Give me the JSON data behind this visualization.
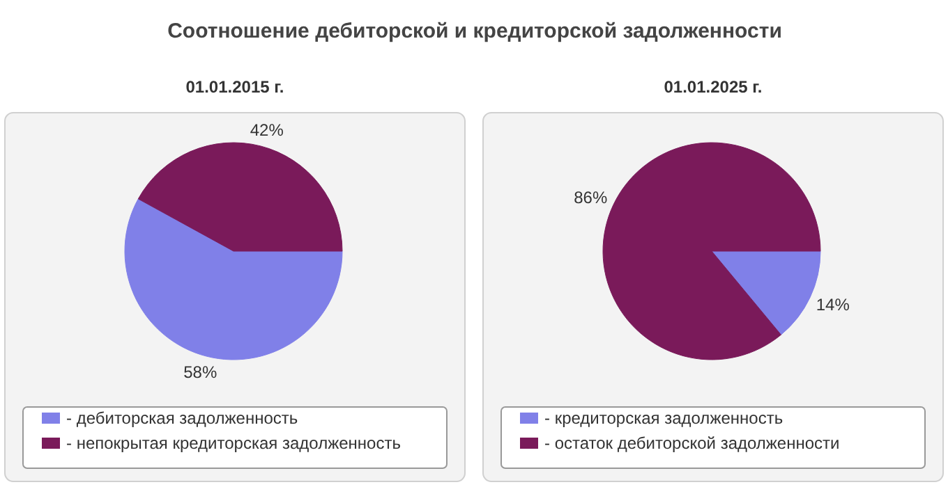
{
  "chart_data": [
    {
      "type": "pie",
      "title": "Соотношение дебиторской и кредиторской задолженности",
      "subtitle": "01.01.2015 г.",
      "categories": [
        "- дебиторская задолженность",
        "- непокрытая кредиторская задолженность"
      ],
      "values": [
        58,
        42
      ],
      "value_labels": [
        "58%",
        "42%"
      ],
      "colors": [
        "#8080e8",
        "#7a1a5a"
      ],
      "legend": "bottom"
    },
    {
      "type": "pie",
      "subtitle": "01.01.2025 г.",
      "categories": [
        "- кредиторская задолженность",
        "- остаток дебиторской задолженности"
      ],
      "values": [
        14,
        86
      ],
      "value_labels": [
        "14%",
        "86%"
      ],
      "colors": [
        "#8080e8",
        "#7a1a5a"
      ],
      "legend": "bottom"
    }
  ]
}
